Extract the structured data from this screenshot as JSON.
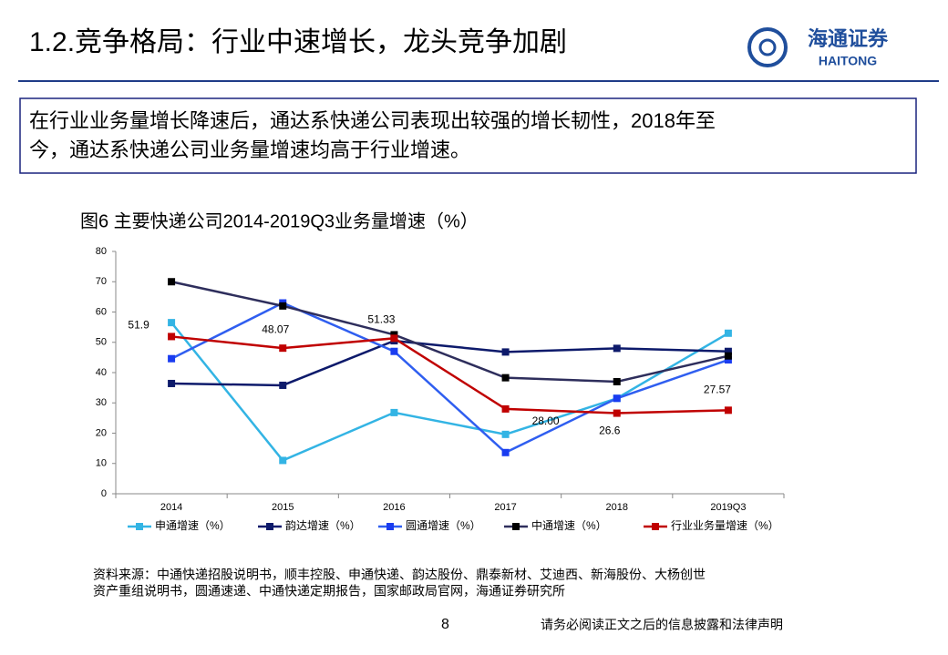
{
  "header": {
    "title": "1.2.竞争格局：行业中速增长，龙头竞争加剧",
    "logo_cn": "海通证券",
    "logo_en": "HAITONG"
  },
  "summary": [
    "在行业业务量增长降速后，通达系快递公司表现出较强的增长韧性，2018年至",
    "今，通达系快递公司业务量增速均高于行业增速。"
  ],
  "chart_data": {
    "type": "line",
    "title": "图6 主要快递公司2014-2019Q3业务量增速（%）",
    "categories": [
      "2014",
      "2015",
      "2016",
      "2017",
      "2018",
      "2019Q3"
    ],
    "ylim": [
      0,
      80
    ],
    "yticks": [
      0,
      10,
      20,
      30,
      40,
      50,
      60,
      70,
      80
    ],
    "series": [
      {
        "name": "申通增速（%）",
        "color": "#33b4e4",
        "marker_color": "#33b4e4",
        "values": [
          56.5,
          11,
          26.8,
          19.6,
          31.5,
          53
        ]
      },
      {
        "name": "韵达增速（%）",
        "color": "#0d1a6b",
        "marker_color": "#0d1a6b",
        "values": [
          36.4,
          35.8,
          50.5,
          46.8,
          48,
          47
        ]
      },
      {
        "name": "圆通增速（%）",
        "color": "#2f5ef0",
        "marker_color": "#1a3cf0",
        "values": [
          44.6,
          63,
          47,
          13.6,
          31.5,
          44.2
        ]
      },
      {
        "name": "中通增速（%）",
        "color": "#2e2e5c",
        "marker_color": "#000000",
        "values": [
          70,
          62,
          52.5,
          38.3,
          37,
          45.5
        ]
      },
      {
        "name": "行业业务量增速（%）",
        "color": "#c00000",
        "marker_color": "#c00000",
        "values": [
          51.9,
          48.07,
          51.33,
          28,
          26.6,
          27.57
        ],
        "value_labels": [
          "51.9",
          "48.07",
          "51.33",
          "28.00",
          "26.6",
          "27.57"
        ]
      }
    ]
  },
  "source": [
    "资料来源：中通快递招股说明书，顺丰控股、申通快递、韵达股份、鼎泰新材、艾迪西、新海股份、大杨创世",
    "资产重组说明书，圆通速递、中通快递定期报告，国家邮政局官网，海通证券研究所"
  ],
  "page_number": "8",
  "disclaimer": "请务必阅读正文之后的信息披露和法律声明"
}
